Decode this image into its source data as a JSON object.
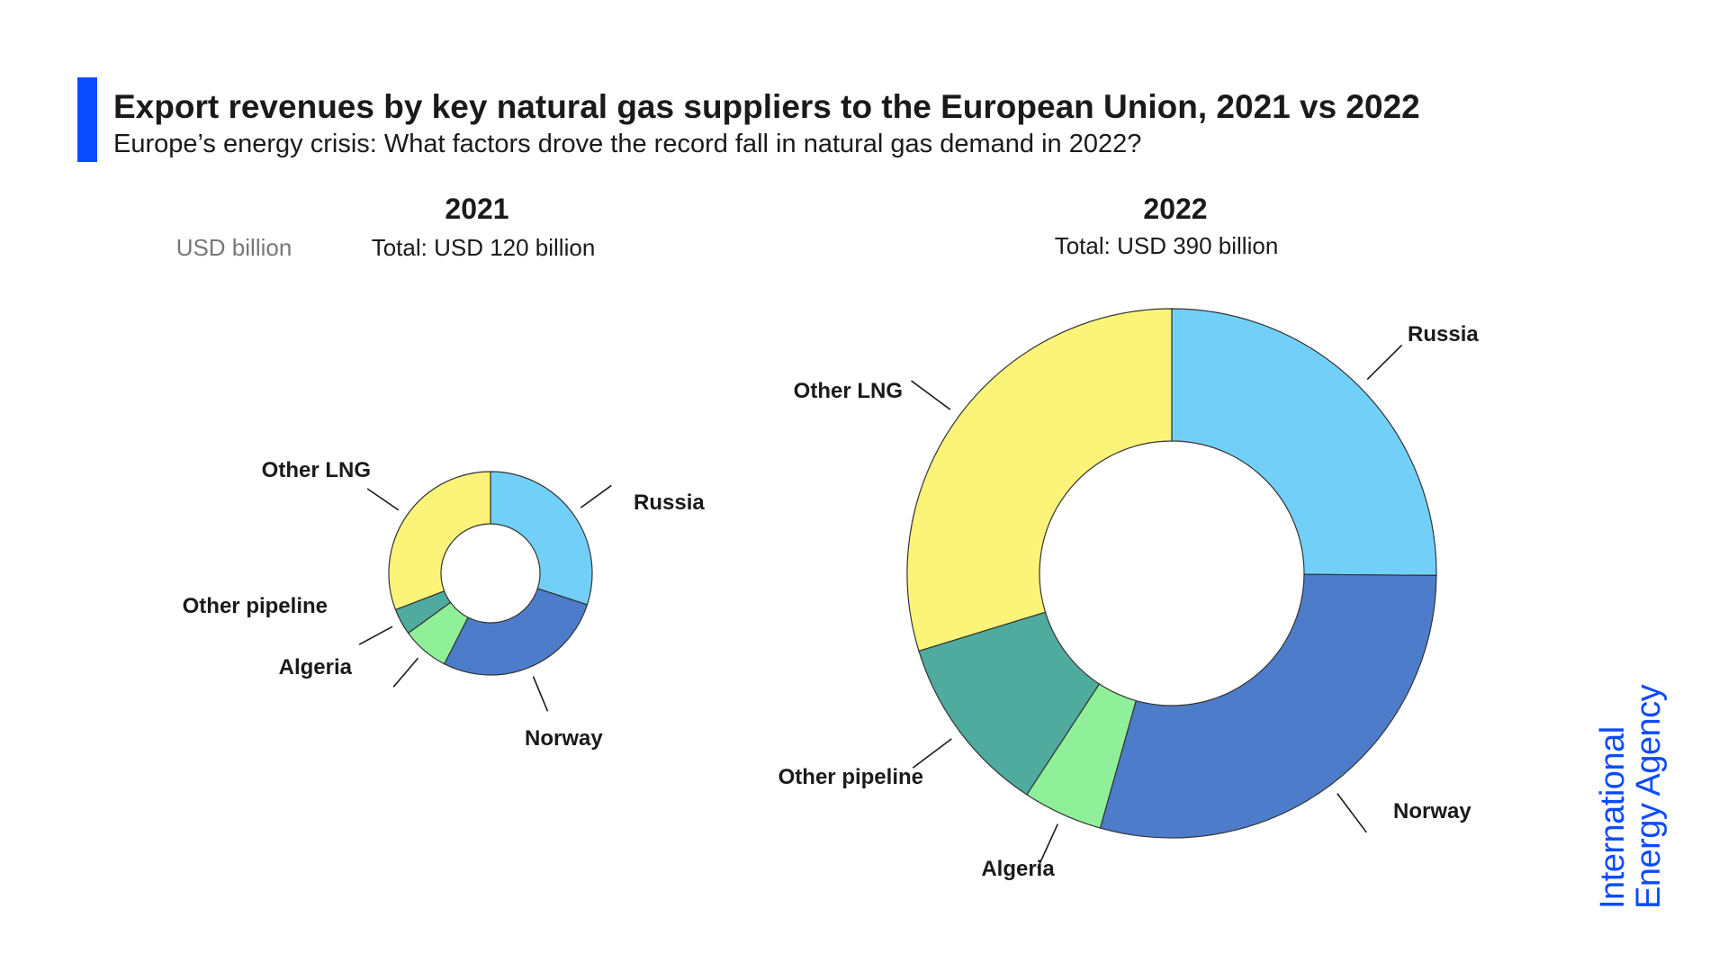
{
  "header": {
    "title": "Export revenues by key natural gas suppliers to the European Union, 2021 vs 2022",
    "subtitle": "Europe’s energy crisis: What factors drove the record fall in natural gas demand in 2022?",
    "accent_color": "#0a4bff"
  },
  "chart_data": [
    {
      "type": "pie",
      "title": "2021",
      "unit_label": "USD billion",
      "total_label": "Total: USD 120 billion",
      "total": 120,
      "slices": [
        {
          "name": "Russia",
          "value": 36,
          "color": "#72d0f8"
        },
        {
          "name": "Norway",
          "value": 33,
          "color": "#4d7dca"
        },
        {
          "name": "Algeria",
          "value": 9,
          "color": "#90ef99"
        },
        {
          "name": "Other pipeline",
          "value": 5,
          "color": "#4fab9e"
        },
        {
          "name": "Other LNG",
          "value": 37,
          "color": "#fbf479"
        }
      ]
    },
    {
      "type": "pie",
      "title": "2022",
      "total_label": "Total: USD 390 billion",
      "total": 390,
      "slices": [
        {
          "name": "Russia",
          "value": 98,
          "color": "#72d0f8"
        },
        {
          "name": "Norway",
          "value": 114,
          "color": "#4d7dca"
        },
        {
          "name": "Algeria",
          "value": 19,
          "color": "#90ef99"
        },
        {
          "name": "Other pipeline",
          "value": 43,
          "color": "#4fab9e"
        },
        {
          "name": "Other LNG",
          "value": 116,
          "color": "#fbf479"
        }
      ]
    }
  ],
  "logo": {
    "line1": "International",
    "line2": "Energy Agency",
    "color": "#0a4bff"
  }
}
